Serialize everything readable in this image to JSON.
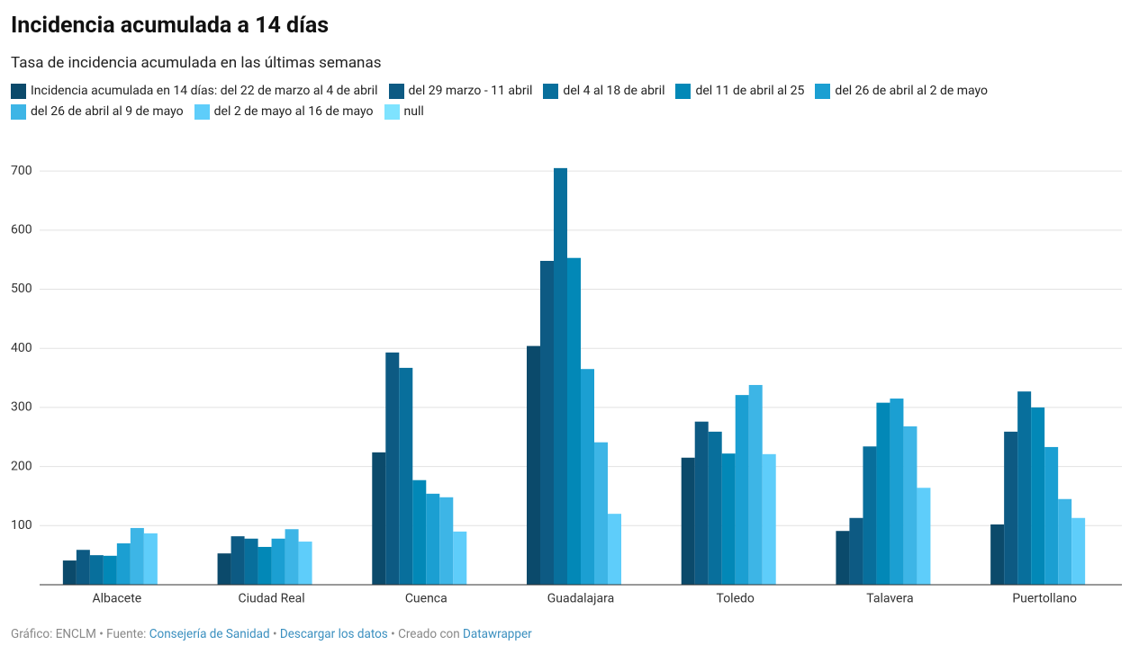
{
  "chart_data": {
    "type": "bar",
    "title": "Incidencia acumulada a 14 días",
    "subtitle": "Tasa de incidencia acumulada en las últimas semanas",
    "categories": [
      "Albacete",
      "Ciudad Real",
      "Cuenca",
      "Guadalajara",
      "Toledo",
      "Talavera",
      "Puertollano"
    ],
    "series": [
      {
        "name": "Incidencia acumulada en 14 días: del 22 de marzo al 4 de abril",
        "color": "#0b4a6b",
        "values": [
          41,
          53,
          224,
          404,
          215,
          91,
          102
        ]
      },
      {
        "name": "del 29 marzo - 11 abril",
        "color": "#0d5a83",
        "values": [
          59,
          82,
          393,
          548,
          276,
          113,
          259
        ]
      },
      {
        "name": "del 4 al 18 de abril",
        "color": "#086f9c",
        "values": [
          50,
          78,
          367,
          705,
          259,
          234,
          327
        ]
      },
      {
        "name": "del 11 de abril al 25",
        "color": "#0288b7",
        "values": [
          49,
          64,
          177,
          553,
          222,
          308,
          300
        ]
      },
      {
        "name": "del 26 de abril al 2 de mayo",
        "color": "#1b9fd2",
        "values": [
          70,
          78,
          154,
          365,
          321,
          315,
          233
        ]
      },
      {
        "name": "del 26 de abril al 9 de mayo",
        "color": "#3db5e6",
        "values": [
          96,
          94,
          148,
          241,
          338,
          268,
          145
        ]
      },
      {
        "name": "del 2 de mayo al 16 de mayo",
        "color": "#5ecdfa",
        "values": [
          87,
          73,
          90,
          120,
          221,
          164,
          113
        ]
      },
      {
        "name": "null",
        "color": "#7ee3ff",
        "values": [
          null,
          null,
          null,
          null,
          null,
          null,
          null
        ]
      }
    ],
    "ylim": [
      0,
      720
    ],
    "yticks": [
      100,
      200,
      300,
      400,
      500,
      600,
      700
    ],
    "grid": true,
    "footer": {
      "byline": "Gráfico: ENCLM",
      "separator": "•",
      "source_label": "Fuente:",
      "source": "Consejería de Sanidad",
      "download": "Descargar los datos",
      "created": "Creado con",
      "tool": "Datawrapper"
    }
  }
}
